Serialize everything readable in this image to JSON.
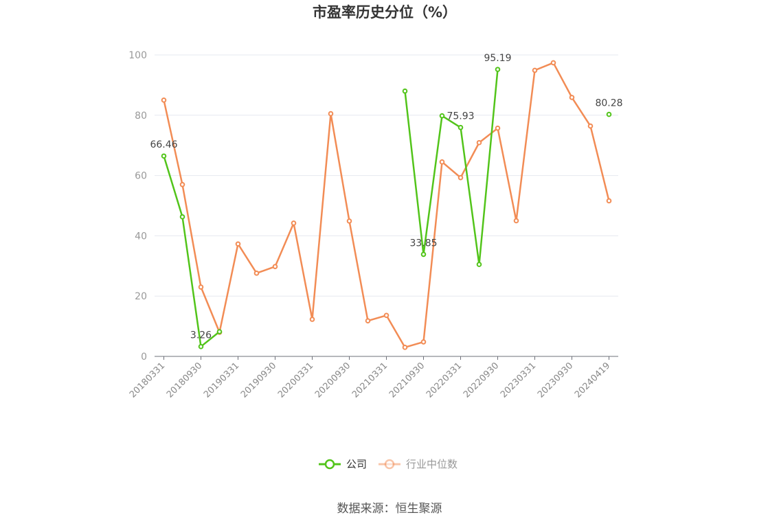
{
  "chart_data": {
    "type": "line",
    "title": "市盈率历史分位（%）",
    "ylim": [
      0,
      100
    ],
    "yticks": [
      0,
      20,
      40,
      60,
      80,
      100
    ],
    "x": [
      "20180331",
      "20180630",
      "20180930",
      "20181231",
      "20190331",
      "20190630",
      "20190930",
      "20191231",
      "20200331",
      "20200630",
      "20200930",
      "20201231",
      "20210331",
      "20210630",
      "20210930",
      "20211231",
      "20220331",
      "20220630",
      "20220930",
      "20221231",
      "20230331",
      "20230630",
      "20230930",
      "20231231",
      "20240419"
    ],
    "xtick_labels": [
      "20180331",
      "20180930",
      "20190331",
      "20190930",
      "20200331",
      "20200930",
      "20210331",
      "20210930",
      "20220331",
      "20220930",
      "20230331",
      "20230930",
      "20240419"
    ],
    "xtick_indices": [
      0,
      2,
      4,
      6,
      8,
      10,
      12,
      14,
      16,
      18,
      20,
      22,
      24
    ],
    "series": [
      {
        "name": "公司",
        "color": "#52c41a",
        "values": [
          66.46,
          46.3,
          3.26,
          8.2,
          null,
          null,
          null,
          null,
          null,
          null,
          null,
          null,
          null,
          88.0,
          33.85,
          79.8,
          75.93,
          30.5,
          95.19,
          null,
          null,
          null,
          null,
          null,
          80.28
        ],
        "labels": {
          "0": "66.46",
          "2": "3.26",
          "14": "33.85",
          "16": "75.93",
          "18": "95.19",
          "24": "80.28"
        }
      },
      {
        "name": "行业中位数",
        "color": "#f28c55",
        "values": [
          85.0,
          57.0,
          23.0,
          8.0,
          37.3,
          27.6,
          29.8,
          44.2,
          12.3,
          80.5,
          44.9,
          11.8,
          13.6,
          3.0,
          4.8,
          64.5,
          59.3,
          70.9,
          75.7,
          45.0,
          94.9,
          97.4,
          85.9,
          76.4,
          51.6
        ],
        "labels": {}
      }
    ],
    "grid": true,
    "legend_position": "bottom-center"
  },
  "source_text": "数据来源：恒生聚源"
}
